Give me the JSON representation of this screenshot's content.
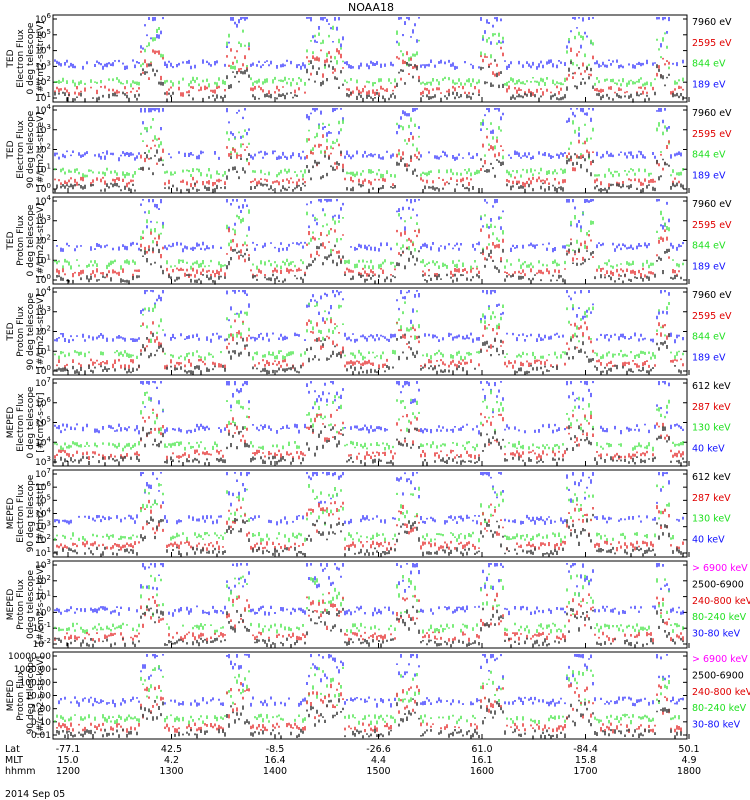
{
  "title": "NOAA18",
  "date_label": "2014 Sep 05",
  "colors": {
    "black": "#000000",
    "red": "#e00000",
    "green": "#22e022",
    "blue": "#1010ff",
    "magenta": "#ff00ff"
  },
  "bottom_axis": {
    "rows": [
      {
        "label": "Lat",
        "values": [
          "-77.1",
          "42.5",
          "-8.5",
          "-26.6",
          "61.0",
          "-84.4",
          "50.1"
        ]
      },
      {
        "label": "MLT",
        "values": [
          "15.0",
          "4.2",
          "16.4",
          "4.4",
          "16.1",
          "15.8",
          "4.9"
        ]
      },
      {
        "label": "hhmm",
        "values": [
          "1200",
          "1300",
          "1400",
          "1500",
          "1600",
          "1700",
          "1800"
        ]
      }
    ]
  },
  "chart_data": [
    {
      "type": "scatter",
      "ylabel": [
        "TED",
        "Electron Flux",
        "0 deg telescope",
        "[#/cm2-s-str-eV]"
      ],
      "yscale": "log",
      "ylim": [
        1,
        1000000
      ],
      "ytick_labels": [
        "10^1",
        "10^2",
        "10^3",
        "10^4",
        "10^5",
        "10^6"
      ],
      "legend": [
        {
          "name": "7960 eV",
          "color": "#000000"
        },
        {
          "name": "2595 eV",
          "color": "#e00000"
        },
        {
          "name": "844 eV",
          "color": "#22e022"
        },
        {
          "name": "189 eV",
          "color": "#1010ff"
        }
      ]
    },
    {
      "type": "scatter",
      "ylabel": [
        "TED",
        "Electron Flux",
        "90 deg telescope",
        "[#/cm2-s-str-eV]"
      ],
      "yscale": "log",
      "ylim": [
        1,
        100000
      ],
      "ytick_labels": [
        "10^0",
        "10^1",
        "10^2",
        "10^3",
        "10^4"
      ],
      "legend": [
        {
          "name": "7960 eV",
          "color": "#000000"
        },
        {
          "name": "2595 eV",
          "color": "#e00000"
        },
        {
          "name": "844 eV",
          "color": "#22e022"
        },
        {
          "name": "189 eV",
          "color": "#1010ff"
        }
      ]
    },
    {
      "type": "scatter",
      "ylabel": [
        "TED",
        "Proton Flux",
        "0 deg telescope",
        "[#/cm2-s-str-eV]"
      ],
      "yscale": "log",
      "ylim": [
        1,
        100000
      ],
      "ytick_labels": [
        "10^0",
        "10^1",
        "10^2",
        "10^3",
        "10^4"
      ],
      "legend": [
        {
          "name": "7960 eV",
          "color": "#000000"
        },
        {
          "name": "2595 eV",
          "color": "#e00000"
        },
        {
          "name": "844 eV",
          "color": "#22e022"
        },
        {
          "name": "189 eV",
          "color": "#1010ff"
        }
      ]
    },
    {
      "type": "scatter",
      "ylabel": [
        "TED",
        "Proton Flux",
        "90 deg telescope",
        "[#/cm2-s-str-eV]"
      ],
      "yscale": "log",
      "ylim": [
        1,
        100000
      ],
      "ytick_labels": [
        "10^0",
        "10^1",
        "10^2",
        "10^3",
        "10^4"
      ],
      "legend": [
        {
          "name": "7960 eV",
          "color": "#000000"
        },
        {
          "name": "2595 eV",
          "color": "#e00000"
        },
        {
          "name": "844 eV",
          "color": "#22e022"
        },
        {
          "name": "189 eV",
          "color": "#1010ff"
        }
      ]
    },
    {
      "type": "scatter",
      "ylabel": [
        "MEPED",
        "Electron Flux",
        "0 deg telescope",
        "[#/cm2-s-str]"
      ],
      "yscale": "log",
      "ylim": [
        1000,
        10000000
      ],
      "ytick_labels": [
        "10^3",
        "10^4",
        "10^5",
        "10^6",
        "10^7"
      ],
      "legend": [
        {
          "name": "612 keV",
          "color": "#000000"
        },
        {
          "name": "287 keV",
          "color": "#e00000"
        },
        {
          "name": "130 keV",
          "color": "#22e022"
        },
        {
          "name": "40 keV",
          "color": "#1010ff"
        }
      ]
    },
    {
      "type": "scatter",
      "ylabel": [
        "MEPED",
        "Electron Flux",
        "90 deg telescope",
        "[#/cm2-s-str]"
      ],
      "yscale": "log",
      "ylim": [
        10,
        10000000
      ],
      "ytick_labels": [
        "10^1",
        "10^2",
        "10^3",
        "10^4",
        "10^5",
        "10^6",
        "10^7"
      ],
      "legend": [
        {
          "name": "612 keV",
          "color": "#000000"
        },
        {
          "name": "287 keV",
          "color": "#e00000"
        },
        {
          "name": "130 keV",
          "color": "#22e022"
        },
        {
          "name": "40 keV",
          "color": "#1010ff"
        }
      ]
    },
    {
      "type": "scatter",
      "ylabel": [
        "MEPED",
        "Proton Flux",
        "0deg telescope",
        "[#/cm2-s-str-keV]"
      ],
      "yscale": "log",
      "ylim": [
        0.01,
        1000
      ],
      "ytick_labels": [
        "10^-2",
        "10^-1",
        "10^0",
        "10^1",
        "10^2",
        "10^3"
      ],
      "legend": [
        {
          "name": "> 6900 keV",
          "color": "#ff00ff"
        },
        {
          "name": "2500-6900",
          "color": "#000000"
        },
        {
          "name": "240-800 keV",
          "color": "#e00000"
        },
        {
          "name": "80-240 keV",
          "color": "#22e022"
        },
        {
          "name": "30-80 keV",
          "color": "#1010ff"
        }
      ]
    },
    {
      "type": "scatter",
      "ylabel": [
        "MEPED",
        "Proton Flux",
        "90 deg telescope",
        "[#/cm2-s-str-keV]"
      ],
      "yscale": "log",
      "ylim": [
        0.01,
        10000
      ],
      "ytick_labels": [
        "10000.00",
        "1000.00",
        "100.00",
        "10.00",
        "1.00",
        "0.10",
        "0.01"
      ],
      "legend": [
        {
          "name": "> 6900 keV",
          "color": "#ff00ff"
        },
        {
          "name": "2500-6900",
          "color": "#000000"
        },
        {
          "name": "240-800 keV",
          "color": "#e00000"
        },
        {
          "name": "80-240 keV",
          "color": "#22e022"
        },
        {
          "name": "30-80 keV",
          "color": "#1010ff"
        }
      ]
    }
  ]
}
